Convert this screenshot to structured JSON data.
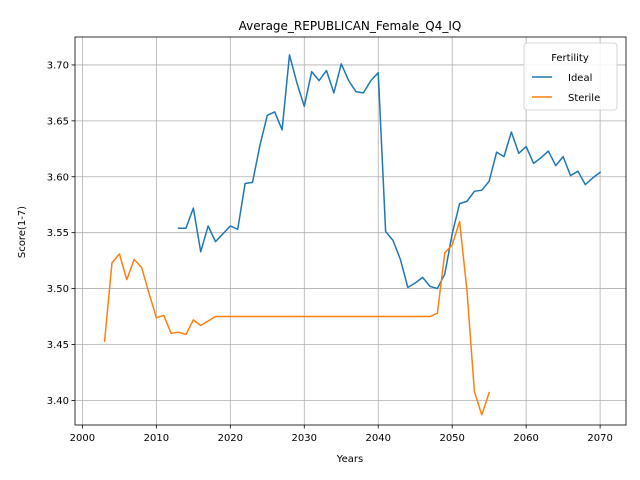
{
  "chart_data": {
    "type": "line",
    "title": "Average_REPUBLICAN_Female_Q4_IQ",
    "xlabel": "Years",
    "ylabel": "Score(1-7)",
    "xlim": [
      1999,
      2073.5
    ],
    "ylim": [
      3.378,
      3.725
    ],
    "xticks": [
      2000,
      2010,
      2020,
      2030,
      2040,
      2050,
      2060,
      2070
    ],
    "yticks": [
      3.4,
      3.45,
      3.5,
      3.55,
      3.6,
      3.65,
      3.7
    ],
    "ytick_labels": [
      "3.40",
      "3.45",
      "3.50",
      "3.55",
      "3.60",
      "3.65",
      "3.70"
    ],
    "grid": true,
    "legend": {
      "title": "Fertility",
      "placement": "top-right"
    },
    "series": [
      {
        "name": "Ideal",
        "color": "#1f77b4",
        "x": [
          2013,
          2014,
          2015,
          2016,
          2017,
          2018,
          2019,
          2020,
          2021,
          2022,
          2023,
          2024,
          2025,
          2026,
          2027,
          2028,
          2029,
          2030,
          2031,
          2032,
          2033,
          2034,
          2035,
          2036,
          2037,
          2038,
          2039,
          2040,
          2041,
          2042,
          2043,
          2044,
          2045,
          2046,
          2047,
          2048,
          2049,
          2050,
          2051,
          2052,
          2053,
          2054,
          2055,
          2056,
          2057,
          2058,
          2059,
          2060,
          2061,
          2062,
          2063,
          2064,
          2065,
          2066,
          2067,
          2068,
          2069,
          2070
        ],
        "values": [
          3.554,
          3.554,
          3.572,
          3.533,
          3.556,
          3.542,
          3.549,
          3.556,
          3.553,
          3.594,
          3.595,
          3.628,
          3.655,
          3.658,
          3.642,
          3.709,
          3.684,
          3.663,
          3.694,
          3.686,
          3.695,
          3.675,
          3.701,
          3.686,
          3.676,
          3.675,
          3.686,
          3.693,
          3.551,
          3.543,
          3.526,
          3.501,
          3.505,
          3.51,
          3.502,
          3.5,
          3.513,
          3.549,
          3.576,
          3.578,
          3.587,
          3.588,
          3.596,
          3.622,
          3.618,
          3.64,
          3.621,
          3.627,
          3.612,
          3.617,
          3.623,
          3.61,
          3.618,
          3.601,
          3.605,
          3.593,
          3.599,
          3.604
        ]
      },
      {
        "name": "Sterile",
        "color": "#ff7f0e",
        "x": [
          2003,
          2004,
          2005,
          2006,
          2007,
          2008,
          2009,
          2010,
          2011,
          2012,
          2013,
          2014,
          2015,
          2016,
          2017,
          2018,
          2019,
          2020,
          2021,
          2022,
          2023,
          2024,
          2025,
          2026,
          2027,
          2028,
          2029,
          2030,
          2031,
          2032,
          2033,
          2034,
          2035,
          2036,
          2037,
          2038,
          2039,
          2040,
          2041,
          2042,
          2043,
          2044,
          2045,
          2046,
          2047,
          2048,
          2049,
          2050,
          2051,
          2052,
          2053,
          2054,
          2055
        ],
        "values": [
          3.453,
          3.523,
          3.531,
          3.508,
          3.526,
          3.519,
          3.496,
          3.474,
          3.476,
          3.46,
          3.461,
          3.459,
          3.472,
          3.467,
          3.471,
          3.475,
          3.475,
          3.475,
          3.475,
          3.475,
          3.475,
          3.475,
          3.475,
          3.475,
          3.475,
          3.475,
          3.475,
          3.475,
          3.475,
          3.475,
          3.475,
          3.475,
          3.475,
          3.475,
          3.475,
          3.475,
          3.475,
          3.475,
          3.475,
          3.475,
          3.475,
          3.475,
          3.475,
          3.475,
          3.475,
          3.478,
          3.532,
          3.539,
          3.56,
          3.498,
          3.408,
          3.387,
          3.407
        ]
      }
    ]
  }
}
